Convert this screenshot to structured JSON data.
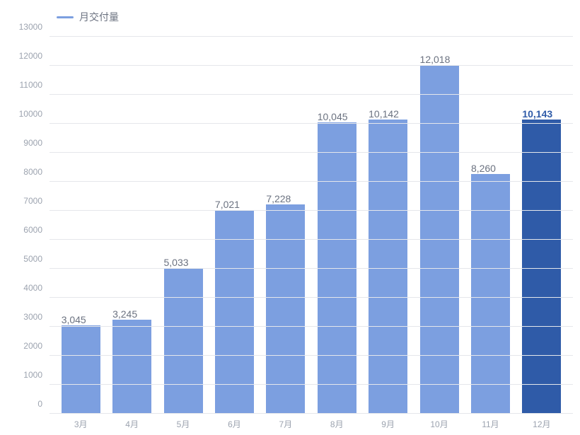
{
  "chart": {
    "type": "bar",
    "legend_label": "月交付量",
    "legend_color": "#7c9fe0",
    "categories": [
      "3月",
      "4月",
      "5月",
      "6月",
      "7月",
      "8月",
      "9月",
      "10月",
      "11月",
      "12月"
    ],
    "values": [
      3045,
      3245,
      5033,
      7021,
      7228,
      10045,
      10142,
      12018,
      8260,
      10143
    ],
    "value_labels": [
      "3,045",
      "3,245",
      "5,033",
      "7,021",
      "7,228",
      "10,045",
      "10,142",
      "12,018",
      "8,260",
      "10,143"
    ],
    "bar_colors": [
      "#7c9fe0",
      "#7c9fe0",
      "#7c9fe0",
      "#7c9fe0",
      "#7c9fe0",
      "#7c9fe0",
      "#7c9fe0",
      "#7c9fe0",
      "#7c9fe0",
      "#2f5ba8"
    ],
    "highlight_index": 9,
    "highlight_label_color": "#2f5ba8",
    "yticks": [
      0,
      1000,
      2000,
      3000,
      4000,
      5000,
      6000,
      7000,
      8000,
      9000,
      10000,
      11000,
      12000,
      13000
    ],
    "ylim": [
      0,
      13000
    ],
    "background_color": "#ffffff",
    "grid_color": "#e5e7eb",
    "axis_text_color": "#9ca3af",
    "label_text_color": "#6b7280",
    "bar_width": 0.76,
    "label_fontsize": 14,
    "tick_fontsize": 12
  }
}
